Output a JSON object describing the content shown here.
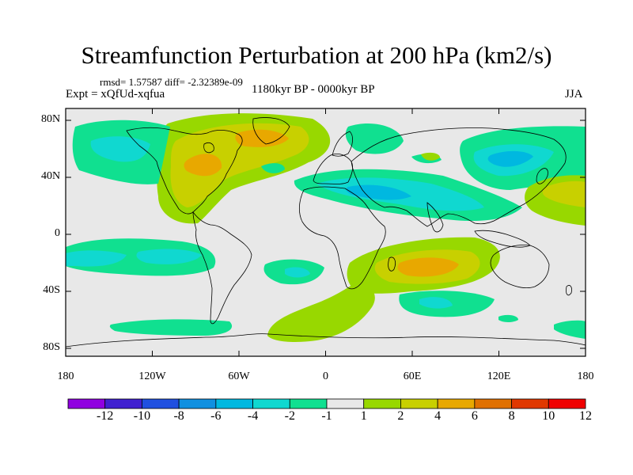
{
  "title": "Streamfunction Perturbation at 200 hPa (km2/s)",
  "stats": "rmsd= 1.57587 diff= -2.32389e-09",
  "experiment": "Expt = xQfUd-xqfua",
  "period": "1180kyr BP - 0000kyr BP",
  "season": "JJA",
  "axes": {
    "latitude_labels": [
      "80N",
      "40N",
      "0",
      "40S",
      "80S"
    ],
    "longitude_labels": [
      "180",
      "120W",
      "60W",
      "0",
      "60E",
      "120E",
      "180"
    ]
  },
  "colorbar": {
    "labels": [
      "-12",
      "-10",
      "-8",
      "-6",
      "-4",
      "-2",
      "-1",
      "1",
      "2",
      "4",
      "6",
      "8",
      "10",
      "12"
    ],
    "colors": [
      "#9000e0",
      "#4020d0",
      "#2050e0",
      "#1090e0",
      "#00b8e0",
      "#10d8d0",
      "#10e090",
      "#e8e8e8",
      "#98d800",
      "#c8d000",
      "#e8a800",
      "#e07000",
      "#e03800",
      "#f00000"
    ]
  },
  "palette": {
    "neutral": "#e8e8e8",
    "neg1": "#10e090",
    "neg2": "#10d8d0",
    "neg3": "#00b8e0",
    "pos1": "#98d800",
    "pos2": "#c8d000",
    "pos3": "#e8a800",
    "coast": "#000000"
  }
}
